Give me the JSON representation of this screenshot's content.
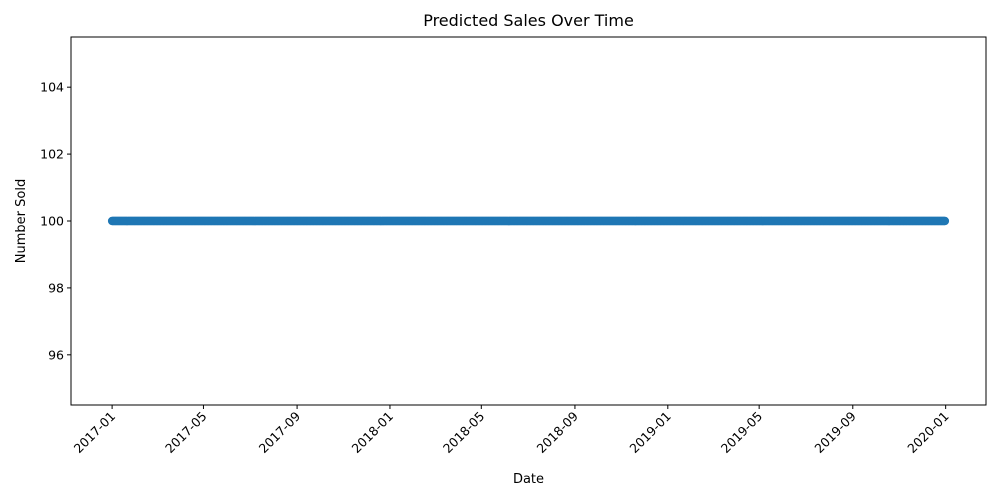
{
  "chart_data": {
    "type": "scatter",
    "title": "Predicted Sales Over Time",
    "xlabel": "Date",
    "ylabel": "Number Sold",
    "x_start": "2017-01-01",
    "x_end": "2019-12-31",
    "x_frequency": "daily",
    "y_value": 100,
    "xlim": [
      "2016-11-08",
      "2020-02-23"
    ],
    "ylim": [
      94.5,
      105.5
    ],
    "x_ticks": [
      "2017-01-01",
      "2017-05-01",
      "2017-09-01",
      "2018-01-01",
      "2018-05-01",
      "2018-09-01",
      "2019-01-01",
      "2019-05-01",
      "2019-09-01",
      "2020-01-01"
    ],
    "x_tick_labels": [
      "2017-01",
      "2017-05",
      "2017-09",
      "2018-01",
      "2018-05",
      "2018-09",
      "2019-01",
      "2019-05",
      "2019-09",
      "2020-01"
    ],
    "y_ticks": [
      96,
      98,
      100,
      102,
      104
    ],
    "marker_color": "#1f77b4",
    "grid": false,
    "legend": "none"
  }
}
